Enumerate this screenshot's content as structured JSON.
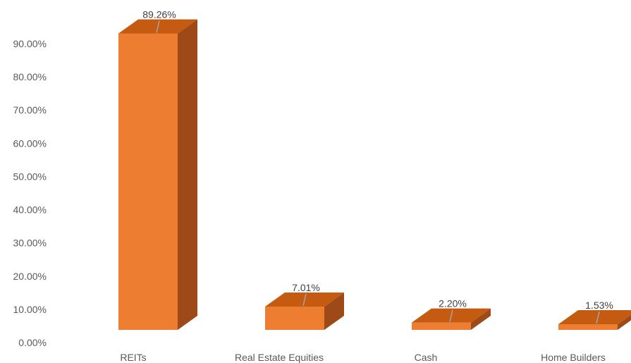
{
  "chart_data": {
    "type": "bar",
    "style": "3d-column",
    "categories": [
      "REITs",
      "Real Estate Equities",
      "Cash",
      "Home Builders"
    ],
    "values": [
      89.26,
      7.01,
      2.2,
      1.53
    ],
    "data_labels": [
      "89.26%",
      "7.01%",
      "2.20%",
      "1.53%"
    ],
    "ylim": [
      0,
      90
    ],
    "yticks": [
      "0.00%",
      "10.00%",
      "20.00%",
      "30.00%",
      "40.00%",
      "50.00%",
      "60.00%",
      "70.00%",
      "80.00%",
      "90.00%"
    ],
    "grid": false,
    "legend": "none",
    "colors": {
      "front": "#ED7D31",
      "top": "#C55A11",
      "side": "#9E4A18"
    }
  }
}
